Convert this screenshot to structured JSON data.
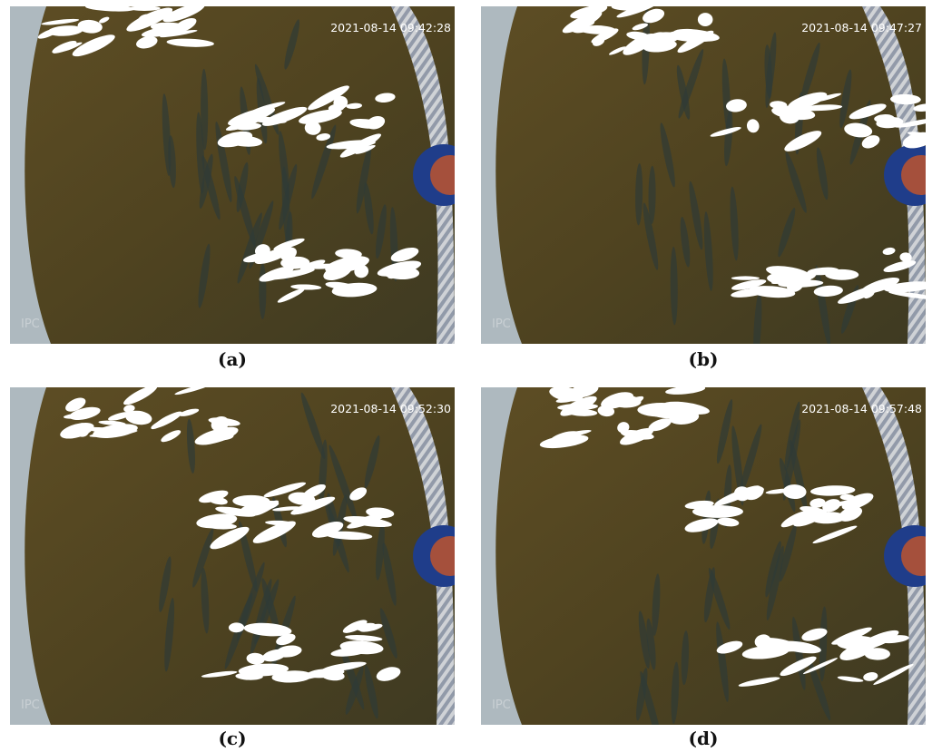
{
  "panels": [
    {
      "timestamp": "2021-08-14 09:42:28",
      "watermark": "IPC",
      "caption": "(a)"
    },
    {
      "timestamp": "2021-08-14 09:47:27",
      "watermark": "IPC",
      "caption": "(b)"
    },
    {
      "timestamp": "2021-08-14 09:52:30",
      "watermark": "IPC",
      "caption": "(c)"
    },
    {
      "timestamp": "2021-08-14 09:57:48",
      "watermark": "IPC",
      "caption": "(d)"
    }
  ]
}
